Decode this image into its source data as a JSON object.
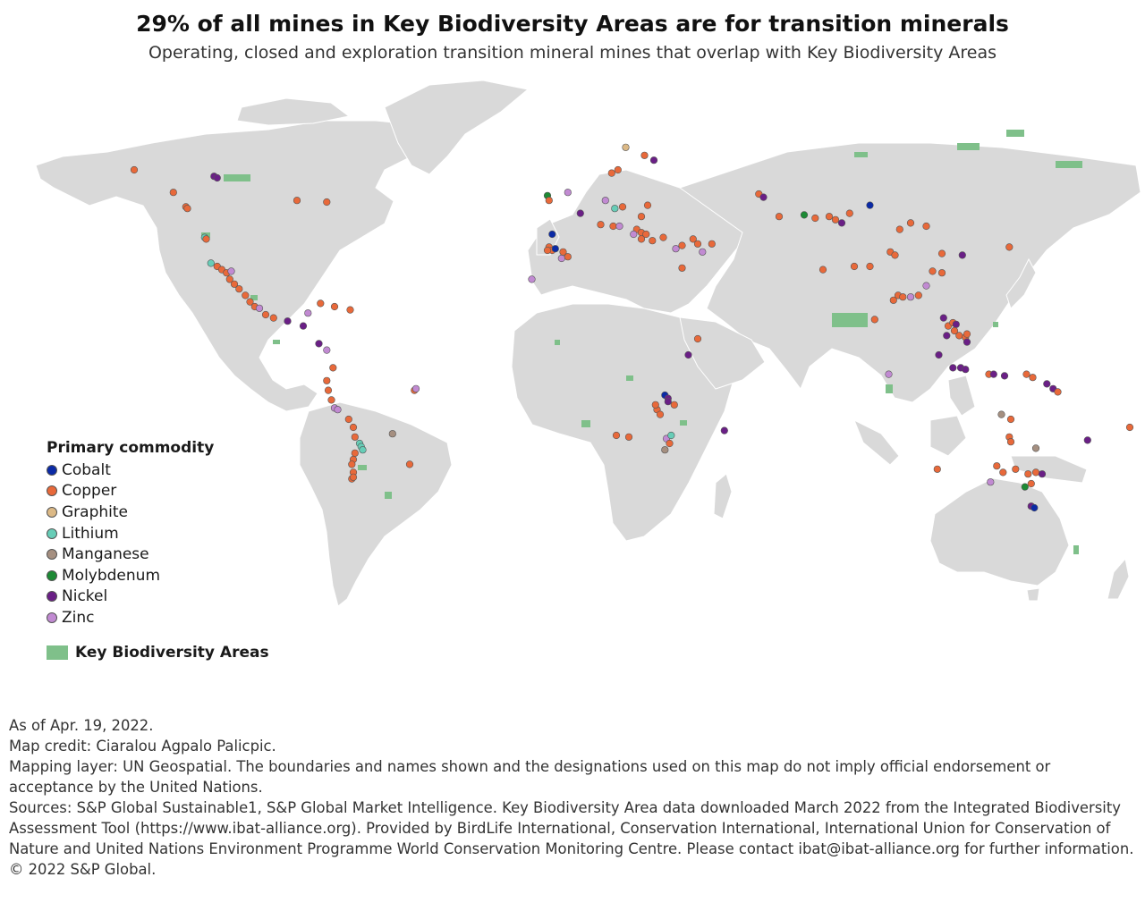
{
  "title": "29% of all mines in Key Biodiversity Areas are for transition minerals",
  "subtitle": "Operating, closed and exploration transition mineral mines that overlap with Key Biodiversity Areas",
  "colors": {
    "land": "#d9d9d9",
    "kba": "#7fc08a",
    "Cobalt": "#0b2aa6",
    "Copper": "#e8693a",
    "Graphite": "#dcb986",
    "Lithium": "#67cdb7",
    "Manganese": "#a58f80",
    "Molybdenum": "#1d8a35",
    "Nickel": "#6a1f86",
    "Zinc": "#c18ad2"
  },
  "legend": {
    "heading": "Primary commodity",
    "items": [
      {
        "label": "Cobalt",
        "color": "#0b2aa6"
      },
      {
        "label": "Copper",
        "color": "#e8693a"
      },
      {
        "label": "Graphite",
        "color": "#dcb986"
      },
      {
        "label": "Lithium",
        "color": "#67cdb7"
      },
      {
        "label": "Manganese",
        "color": "#a58f80"
      },
      {
        "label": "Molybdenum",
        "color": "#1d8a35"
      },
      {
        "label": "Nickel",
        "color": "#6a1f86"
      },
      {
        "label": "Zinc",
        "color": "#c18ad2"
      }
    ],
    "kba_label": "Key Biodiversity Areas"
  },
  "notes": [
    "As of Apr. 19, 2022.",
    "Map credit: Ciaralou Agpalo Palicpic.",
    "Mapping layer: UN Geospatial. The boundaries and names shown and the designations used on this map do not imply official endorsement or acceptance by the United Nations.",
    "Sources: S&P Global Sustainable1, S&P Global Market Intelligence. Key Biodiversity Area data downloaded March 2022 from the Integrated Biodiversity Assessment Tool (https://www.ibat-alliance.org). Provided by BirdLife International, Conservation International, International Union for Conservation of Nature and United Nations Environment Programme World Conservation Monitoring Centre. Please contact ibat@ibat-alliance.org for further information.",
    "© 2022 S&P Global."
  ],
  "mines": [
    {
      "c": "Copper",
      "lon": -123.5,
      "lat": 51.0
    },
    {
      "c": "Copper",
      "lon": -123.0,
      "lat": 50.5
    },
    {
      "c": "Copper",
      "lon": -127.5,
      "lat": 55.5
    },
    {
      "c": "Copper",
      "lon": -140.0,
      "lat": 62.5
    },
    {
      "c": "Nickel",
      "lon": -114.5,
      "lat": 60.5
    },
    {
      "c": "Nickel",
      "lon": -113.5,
      "lat": 60.0
    },
    {
      "c": "Copper",
      "lon": -88.0,
      "lat": 53.0
    },
    {
      "c": "Copper",
      "lon": -78.5,
      "lat": 52.5
    },
    {
      "c": "Lithium",
      "lon": -117.5,
      "lat": 41.5
    },
    {
      "c": "Copper",
      "lon": -117.0,
      "lat": 41.0
    },
    {
      "c": "Lithium",
      "lon": -115.5,
      "lat": 33.5
    },
    {
      "c": "Copper",
      "lon": -113.5,
      "lat": 32.5
    },
    {
      "c": "Copper",
      "lon": -112.0,
      "lat": 31.5
    },
    {
      "c": "Copper",
      "lon": -110.5,
      "lat": 30.5
    },
    {
      "c": "Zinc",
      "lon": -109.0,
      "lat": 31.0
    },
    {
      "c": "Copper",
      "lon": -109.5,
      "lat": 28.5
    },
    {
      "c": "Copper",
      "lon": -108.0,
      "lat": 27.0
    },
    {
      "c": "Copper",
      "lon": -106.5,
      "lat": 25.5
    },
    {
      "c": "Copper",
      "lon": -104.5,
      "lat": 23.5
    },
    {
      "c": "Copper",
      "lon": -103.0,
      "lat": 21.5
    },
    {
      "c": "Copper",
      "lon": -101.5,
      "lat": 20.0
    },
    {
      "c": "Zinc",
      "lon": -100.0,
      "lat": 19.5
    },
    {
      "c": "Copper",
      "lon": -98.0,
      "lat": 17.5
    },
    {
      "c": "Copper",
      "lon": -95.5,
      "lat": 16.5
    },
    {
      "c": "Nickel",
      "lon": -91.0,
      "lat": 15.5
    },
    {
      "c": "Nickel",
      "lon": -86.0,
      "lat": 14.0
    },
    {
      "c": "Copper",
      "lon": -80.5,
      "lat": 21.0
    },
    {
      "c": "Copper",
      "lon": -76.0,
      "lat": 20.0
    },
    {
      "c": "Zinc",
      "lon": -84.5,
      "lat": 18.0
    },
    {
      "c": "Copper",
      "lon": -71.0,
      "lat": 19.0
    },
    {
      "c": "Nickel",
      "lon": -81.0,
      "lat": 8.5
    },
    {
      "c": "Zinc",
      "lon": -78.5,
      "lat": 6.5
    },
    {
      "c": "Copper",
      "lon": -76.5,
      "lat": 1.0
    },
    {
      "c": "Copper",
      "lon": -78.5,
      "lat": -3.0
    },
    {
      "c": "Copper",
      "lon": -78.0,
      "lat": -6.0
    },
    {
      "c": "Copper",
      "lon": -77.0,
      "lat": -9.0
    },
    {
      "c": "Zinc",
      "lon": -76.0,
      "lat": -11.5
    },
    {
      "c": "Zinc",
      "lon": -75.0,
      "lat": -12.0
    },
    {
      "c": "Copper",
      "lon": -71.5,
      "lat": -15.0
    },
    {
      "c": "Copper",
      "lon": -70.0,
      "lat": -17.5
    },
    {
      "c": "Copper",
      "lon": -69.5,
      "lat": -20.5
    },
    {
      "c": "Lithium",
      "lon": -68.0,
      "lat": -22.5
    },
    {
      "c": "Lithium",
      "lon": -67.5,
      "lat": -23.5
    },
    {
      "c": "Lithium",
      "lon": -67.0,
      "lat": -24.5
    },
    {
      "c": "Copper",
      "lon": -69.5,
      "lat": -25.5
    },
    {
      "c": "Copper",
      "lon": -70.0,
      "lat": -27.5
    },
    {
      "c": "Copper",
      "lon": -70.5,
      "lat": -29.0
    },
    {
      "c": "Copper",
      "lon": -70.0,
      "lat": -31.5
    },
    {
      "c": "Copper",
      "lon": -70.5,
      "lat": -33.5
    },
    {
      "c": "Manganese",
      "lon": -57.5,
      "lat": -19.5
    },
    {
      "c": "Copper",
      "lon": -50.5,
      "lat": -6.0
    },
    {
      "c": "Zinc",
      "lon": -50.0,
      "lat": -5.5
    },
    {
      "c": "Copper",
      "lon": -52.0,
      "lat": -29.0
    },
    {
      "c": "Copper",
      "lon": -70.0,
      "lat": -33.0
    },
    {
      "c": "Molybdenum",
      "lon": -8.0,
      "lat": 54.5
    },
    {
      "c": "Copper",
      "lon": -7.5,
      "lat": 53.0
    },
    {
      "c": "Zinc",
      "lon": -1.5,
      "lat": 55.5
    },
    {
      "c": "Nickel",
      "lon": 2.5,
      "lat": 49.0
    },
    {
      "c": "Cobalt",
      "lon": -6.5,
      "lat": 42.5
    },
    {
      "c": "Copper",
      "lon": -7.5,
      "lat": 38.5
    },
    {
      "c": "Copper",
      "lon": -6.5,
      "lat": 37.5
    },
    {
      "c": "Copper",
      "lon": -8.0,
      "lat": 37.5
    },
    {
      "c": "Cobalt",
      "lon": -5.5,
      "lat": 38.0
    },
    {
      "c": "Zinc",
      "lon": -3.5,
      "lat": 35.0
    },
    {
      "c": "Copper",
      "lon": -3.0,
      "lat": 37.0
    },
    {
      "c": "Graphite",
      "lon": 17.0,
      "lat": 69.5
    },
    {
      "c": "Copper",
      "lon": 23.0,
      "lat": 67.0
    },
    {
      "c": "Nickel",
      "lon": 26.0,
      "lat": 65.5
    },
    {
      "c": "Copper",
      "lon": 14.5,
      "lat": 62.5
    },
    {
      "c": "Copper",
      "lon": 12.5,
      "lat": 61.5
    },
    {
      "c": "Zinc",
      "lon": 10.5,
      "lat": 53.0
    },
    {
      "c": "Lithium",
      "lon": 13.5,
      "lat": 50.5
    },
    {
      "c": "Copper",
      "lon": 16.0,
      "lat": 51.0
    },
    {
      "c": "Copper",
      "lon": 24.0,
      "lat": 51.5
    },
    {
      "c": "Copper",
      "lon": 22.0,
      "lat": 48.0
    },
    {
      "c": "Copper",
      "lon": 9.0,
      "lat": 45.5
    },
    {
      "c": "Copper",
      "lon": 13.0,
      "lat": 45.0
    },
    {
      "c": "Zinc",
      "lon": 15.0,
      "lat": 45.0
    },
    {
      "c": "Copper",
      "lon": 20.5,
      "lat": 44.0
    },
    {
      "c": "Copper",
      "lon": 22.0,
      "lat": 43.0
    },
    {
      "c": "Zinc",
      "lon": 19.5,
      "lat": 42.5
    },
    {
      "c": "Copper",
      "lon": 23.5,
      "lat": 42.5
    },
    {
      "c": "Copper",
      "lon": 22.0,
      "lat": 41.0
    },
    {
      "c": "Copper",
      "lon": 25.5,
      "lat": 40.5
    },
    {
      "c": "Copper",
      "lon": 29.0,
      "lat": 41.5
    },
    {
      "c": "Zinc",
      "lon": 33.0,
      "lat": 38.0
    },
    {
      "c": "Copper",
      "lon": 35.0,
      "lat": 39.0
    },
    {
      "c": "Copper",
      "lon": 38.5,
      "lat": 41.0
    },
    {
      "c": "Copper",
      "lon": 40.0,
      "lat": 39.5
    },
    {
      "c": "Zinc",
      "lon": 41.5,
      "lat": 37.0
    },
    {
      "c": "Copper",
      "lon": 44.5,
      "lat": 39.5
    },
    {
      "c": "Copper",
      "lon": 35.0,
      "lat": 32.0
    },
    {
      "c": "Copper",
      "lon": 59.5,
      "lat": 55.0
    },
    {
      "c": "Nickel",
      "lon": 61.0,
      "lat": 54.0
    },
    {
      "c": "Copper",
      "lon": 66.0,
      "lat": 48.0
    },
    {
      "c": "Molybdenum",
      "lon": 74.0,
      "lat": 48.5
    },
    {
      "c": "Copper",
      "lon": 77.5,
      "lat": 47.5
    },
    {
      "c": "Copper",
      "lon": 82.0,
      "lat": 48.0
    },
    {
      "c": "Copper",
      "lon": 84.0,
      "lat": 47.0
    },
    {
      "c": "Nickel",
      "lon": 86.0,
      "lat": 46.0
    },
    {
      "c": "Copper",
      "lon": 88.5,
      "lat": 49.0
    },
    {
      "c": "Cobalt",
      "lon": 95.0,
      "lat": 51.5
    },
    {
      "c": "Copper",
      "lon": 104.5,
      "lat": 44.0
    },
    {
      "c": "Copper",
      "lon": 108.0,
      "lat": 46.0
    },
    {
      "c": "Copper",
      "lon": 113.0,
      "lat": 45.0
    },
    {
      "c": "Copper",
      "lon": 118.0,
      "lat": 36.5
    },
    {
      "c": "Nickel",
      "lon": 124.5,
      "lat": 36.0
    },
    {
      "c": "Copper",
      "lon": 139.5,
      "lat": 38.5
    },
    {
      "c": "Copper",
      "lon": 101.5,
      "lat": 37.0
    },
    {
      "c": "Copper",
      "lon": 103.0,
      "lat": 36.0
    },
    {
      "c": "Copper",
      "lon": 95.0,
      "lat": 32.5
    },
    {
      "c": "Copper",
      "lon": 90.0,
      "lat": 32.5
    },
    {
      "c": "Copper",
      "lon": 80.0,
      "lat": 31.5
    },
    {
      "c": "Copper",
      "lon": 118.0,
      "lat": 30.5
    },
    {
      "c": "Copper",
      "lon": 115.0,
      "lat": 31.0
    },
    {
      "c": "Zinc",
      "lon": 113.0,
      "lat": 26.5
    },
    {
      "c": "Copper",
      "lon": 104.0,
      "lat": 23.5
    },
    {
      "c": "Copper",
      "lon": 105.5,
      "lat": 23.0
    },
    {
      "c": "Zinc",
      "lon": 108.0,
      "lat": 23.0
    },
    {
      "c": "Copper",
      "lon": 110.5,
      "lat": 23.5
    },
    {
      "c": "Copper",
      "lon": 102.5,
      "lat": 22.0
    },
    {
      "c": "Copper",
      "lon": 96.5,
      "lat": 16.0
    },
    {
      "c": "Zinc",
      "lon": 101.0,
      "lat": -1.0
    },
    {
      "c": "Nickel",
      "lon": 118.5,
      "lat": 16.5
    },
    {
      "c": "Copper",
      "lon": 120.0,
      "lat": 14.0
    },
    {
      "c": "Copper",
      "lon": 121.5,
      "lat": 15.0
    },
    {
      "c": "Nickel",
      "lon": 122.5,
      "lat": 14.5
    },
    {
      "c": "Copper",
      "lon": 122.0,
      "lat": 12.5
    },
    {
      "c": "Nickel",
      "lon": 119.5,
      "lat": 11.0
    },
    {
      "c": "Copper",
      "lon": 123.5,
      "lat": 11.0
    },
    {
      "c": "Copper",
      "lon": 125.5,
      "lat": 10.5
    },
    {
      "c": "Nickel",
      "lon": 126.0,
      "lat": 9.0
    },
    {
      "c": "Copper",
      "lon": 126.0,
      "lat": 11.5
    },
    {
      "c": "Nickel",
      "lon": 117.0,
      "lat": 5.0
    },
    {
      "c": "Nickel",
      "lon": 121.5,
      "lat": 1.0
    },
    {
      "c": "Nickel",
      "lon": 124.0,
      "lat": 1.0
    },
    {
      "c": "Nickel",
      "lon": 125.5,
      "lat": 0.5
    },
    {
      "c": "Copper",
      "lon": 133.0,
      "lat": -1.0
    },
    {
      "c": "Nickel",
      "lon": 134.5,
      "lat": -1.0
    },
    {
      "c": "Nickel",
      "lon": 138.0,
      "lat": -1.5
    },
    {
      "c": "Copper",
      "lon": 145.0,
      "lat": -1.0
    },
    {
      "c": "Copper",
      "lon": 147.0,
      "lat": -2.0
    },
    {
      "c": "Nickel",
      "lon": 151.5,
      "lat": -4.0
    },
    {
      "c": "Nickel",
      "lon": 153.5,
      "lat": -5.5
    },
    {
      "c": "Copper",
      "lon": 155.0,
      "lat": -6.5
    },
    {
      "c": "Nickel",
      "lon": 164.5,
      "lat": -21.5
    },
    {
      "c": "Copper",
      "lon": 178.0,
      "lat": -17.5
    },
    {
      "c": "Manganese",
      "lon": 137.0,
      "lat": -13.5
    },
    {
      "c": "Copper",
      "lon": 140.0,
      "lat": -15.0
    },
    {
      "c": "Copper",
      "lon": 139.5,
      "lat": -20.5
    },
    {
      "c": "Copper",
      "lon": 140.0,
      "lat": -22.0
    },
    {
      "c": "Manganese",
      "lon": 148.0,
      "lat": -24.0
    },
    {
      "c": "Copper",
      "lon": 116.5,
      "lat": -30.5
    },
    {
      "c": "Copper",
      "lon": 135.5,
      "lat": -29.5
    },
    {
      "c": "Copper",
      "lon": 137.5,
      "lat": -31.5
    },
    {
      "c": "Copper",
      "lon": 141.5,
      "lat": -30.5
    },
    {
      "c": "Copper",
      "lon": 145.5,
      "lat": -32.0
    },
    {
      "c": "Copper",
      "lon": 148.0,
      "lat": -31.5
    },
    {
      "c": "Nickel",
      "lon": 150.0,
      "lat": -32.0
    },
    {
      "c": "Copper",
      "lon": 146.5,
      "lat": -35.0
    },
    {
      "c": "Zinc",
      "lon": 133.5,
      "lat": -34.5
    },
    {
      "c": "Molybdenum",
      "lon": 144.5,
      "lat": -36.0
    },
    {
      "c": "Nickel",
      "lon": 146.5,
      "lat": -42.0
    },
    {
      "c": "Cobalt",
      "lon": 147.5,
      "lat": -42.5
    },
    {
      "c": "Copper",
      "lon": -1.5,
      "lat": 35.5
    },
    {
      "c": "Copper",
      "lon": 27.0,
      "lat": -12.0
    },
    {
      "c": "Copper",
      "lon": 28.0,
      "lat": -13.5
    },
    {
      "c": "Copper",
      "lon": 26.5,
      "lat": -10.5
    },
    {
      "c": "Cobalt",
      "lon": 29.5,
      "lat": -7.5
    },
    {
      "c": "Nickel",
      "lon": 30.5,
      "lat": -8.5
    },
    {
      "c": "Nickel",
      "lon": 30.5,
      "lat": -9.5
    },
    {
      "c": "Copper",
      "lon": 32.5,
      "lat": -10.5
    },
    {
      "c": "Nickel",
      "lon": 37.0,
      "lat": 5.0
    },
    {
      "c": "Copper",
      "lon": 40.0,
      "lat": 10.0
    },
    {
      "c": "Copper",
      "lon": 18.0,
      "lat": -20.5
    },
    {
      "c": "Copper",
      "lon": 14.0,
      "lat": -20.0
    },
    {
      "c": "Zinc",
      "lon": 30.0,
      "lat": -21.0
    },
    {
      "c": "Lithium",
      "lon": 31.5,
      "lat": -20.0
    },
    {
      "c": "Copper",
      "lon": 31.0,
      "lat": -22.5
    },
    {
      "c": "Manganese",
      "lon": 29.5,
      "lat": -24.5
    },
    {
      "c": "Nickel",
      "lon": 48.5,
      "lat": -18.5
    },
    {
      "c": "Zinc",
      "lon": -13.0,
      "lat": 28.5
    }
  ]
}
